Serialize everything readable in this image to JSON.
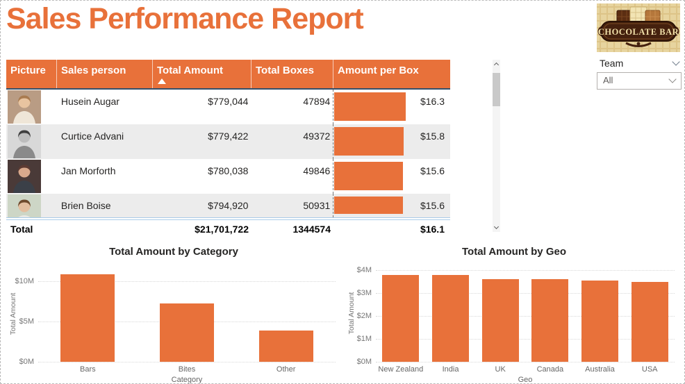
{
  "page": {
    "title": "Sales Performance Report",
    "accent_color": "#E8713A"
  },
  "logo": {
    "brand": "Chocolate Bar",
    "text": "CHOCOLATE BAR",
    "bg_color": "#E7D49F",
    "banner_color": "#45210E",
    "text_color": "#F0DFA8"
  },
  "slicer": {
    "label": "Team",
    "value": "All"
  },
  "icons": {
    "slicer_header": "chevron-down",
    "dropdown": "chevron-down",
    "sort": "triangle-up",
    "scrollbar_top": "chevron-up",
    "scrollbar_bottom": "chevron-down"
  },
  "table": {
    "columns": [
      "Picture",
      "Sales person",
      "Total Amount",
      "Total Boxes",
      "Amount per Box"
    ],
    "sorted_column": "Total Amount",
    "sort_direction": "ascending",
    "header_bg": "#E8713A",
    "bar_color": "#E8713A",
    "rows": [
      {
        "name": "Husein Augar",
        "total_amount": "$779,044",
        "total_boxes": "47894",
        "amount_per_box": "$16.3",
        "bar_ratio": 1.0,
        "photo": {
          "alt": "Husein Augar photo",
          "bg": "#B99C84",
          "skin": "#E8C4A0",
          "hair": "#A97B50",
          "shirt": "#EFE6D8"
        }
      },
      {
        "name": "Curtice Advani",
        "total_amount": "$779,422",
        "total_boxes": "49372",
        "amount_per_box": "$15.8",
        "bar_ratio": 0.969,
        "photo": {
          "alt": "Curtice Advani photo",
          "bg": "#D8D8D8",
          "skin": "#BDBDBD",
          "hair": "#3F3F3F",
          "shirt": "#8A8A8A"
        }
      },
      {
        "name": "Jan Morforth",
        "total_amount": "$780,038",
        "total_boxes": "49846",
        "amount_per_box": "$15.6",
        "bar_ratio": 0.957,
        "photo": {
          "alt": "Jan Morforth photo",
          "bg": "#4A3A38",
          "skin": "#D9A98C",
          "hair": "#5C3A32",
          "shirt": "#3B4048"
        }
      },
      {
        "name": "Brien Boise",
        "total_amount": "$794,920",
        "total_boxes": "50931",
        "amount_per_box": "$15.6",
        "bar_ratio": 0.957,
        "photo": {
          "alt": "Brien Boise photo",
          "bg": "#CDD6C6",
          "skin": "#E3BE9F",
          "hair": "#6E4A2D",
          "shirt": "#E8E8E4"
        }
      }
    ],
    "total": {
      "label": "Total",
      "total_amount": "$21,701,722",
      "total_boxes": "1344574",
      "amount_per_box": "$16.1"
    }
  },
  "chart_data": [
    {
      "type": "bar",
      "title": "Total Amount by Category",
      "xlabel": "Category",
      "ylabel": "Total Amount",
      "categories": [
        "Bars",
        "Bites",
        "Other"
      ],
      "values": [
        10800000,
        7200000,
        3900000
      ],
      "ylim": [
        0,
        11600000
      ],
      "yticks": [
        {
          "label": "$0M",
          "value": 0
        },
        {
          "label": "$5M",
          "value": 5000000
        },
        {
          "label": "$10M",
          "value": 10000000
        }
      ],
      "bar_color": "#E8713A",
      "grid": true,
      "legend": false
    },
    {
      "type": "bar",
      "title": "Total Amount by Geo",
      "xlabel": "Geo",
      "ylabel": "Total Amount",
      "categories": [
        "New Zealand",
        "India",
        "UK",
        "Canada",
        "Australia",
        "USA"
      ],
      "values": [
        3800000,
        3780000,
        3620000,
        3600000,
        3560000,
        3470000
      ],
      "ylim": [
        0,
        4150000
      ],
      "yticks": [
        {
          "label": "$0M",
          "value": 0
        },
        {
          "label": "$1M",
          "value": 1000000
        },
        {
          "label": "$2M",
          "value": 2000000
        },
        {
          "label": "$3M",
          "value": 3000000
        },
        {
          "label": "$4M",
          "value": 4000000
        }
      ],
      "bar_color": "#E8713A",
      "grid": true,
      "legend": false
    }
  ]
}
